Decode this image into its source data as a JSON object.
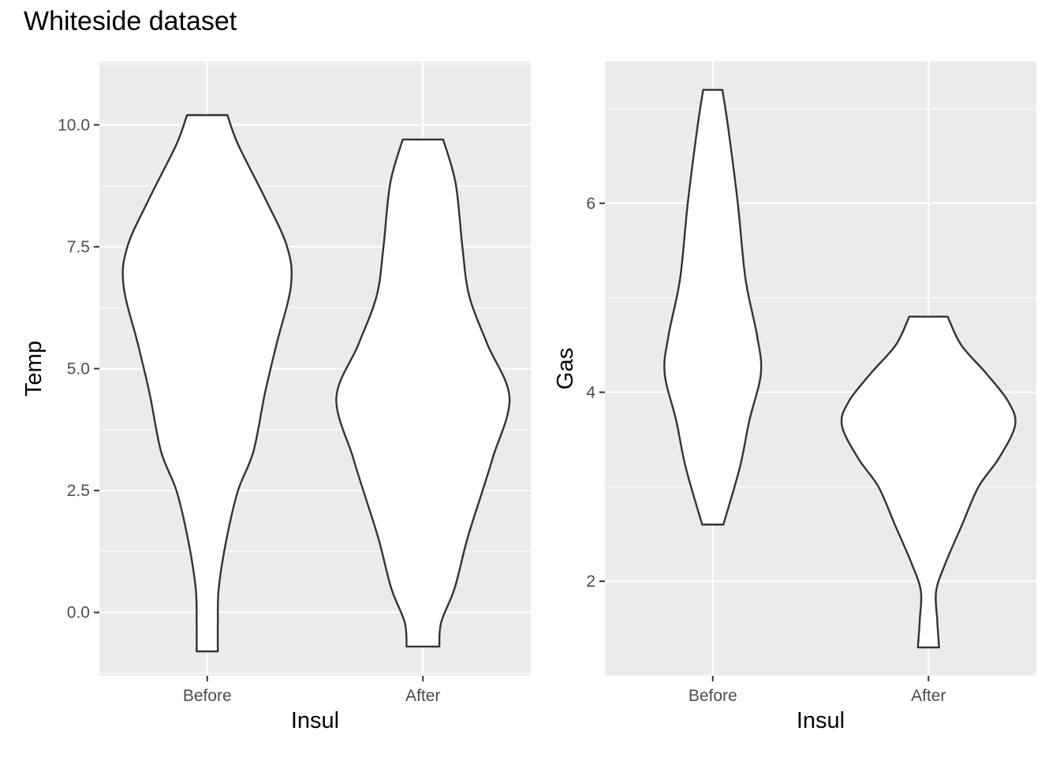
{
  "title": "Whiteside dataset",
  "colors": {
    "panel": "#EBEBEB",
    "grid": "#FFFFFF",
    "outline": "#333333",
    "fill": "#FFFFFF",
    "tick_text": "#4D4D4D"
  },
  "chart_data": [
    {
      "type": "violin",
      "xlabel": "Insul",
      "ylabel": "Temp",
      "categories": [
        "Before",
        "After"
      ],
      "ylim": [
        -1.3,
        11.3
      ],
      "yticks": [
        0.0,
        2.5,
        5.0,
        7.5,
        10.0
      ],
      "ytick_labels": [
        "0.0",
        "2.5",
        "5.0",
        "7.5",
        "10.0"
      ],
      "grid": true,
      "violins": [
        {
          "category": "Before",
          "min": -0.8,
          "max": 10.2,
          "profile": [
            [
              10.2,
              0.21
            ],
            [
              9.6,
              0.32
            ],
            [
              8.5,
              0.6
            ],
            [
              7.5,
              0.83
            ],
            [
              6.7,
              0.87
            ],
            [
              5.5,
              0.72
            ],
            [
              4.5,
              0.6
            ],
            [
              3.3,
              0.48
            ],
            [
              2.5,
              0.32
            ],
            [
              1.5,
              0.2
            ],
            [
              0.5,
              0.12
            ],
            [
              -0.2,
              0.11
            ],
            [
              -0.8,
              0.11
            ]
          ]
        },
        {
          "category": "After",
          "min": -0.7,
          "max": 9.7,
          "profile": [
            [
              9.7,
              0.21
            ],
            [
              8.8,
              0.34
            ],
            [
              7.5,
              0.41
            ],
            [
              6.5,
              0.48
            ],
            [
              5.5,
              0.67
            ],
            [
              4.4,
              0.9
            ],
            [
              3.2,
              0.73
            ],
            [
              2.5,
              0.62
            ],
            [
              1.5,
              0.46
            ],
            [
              0.5,
              0.33
            ],
            [
              -0.2,
              0.19
            ],
            [
              -0.7,
              0.17
            ]
          ]
        }
      ]
    },
    {
      "type": "violin",
      "xlabel": "Insul",
      "ylabel": "Gas",
      "categories": [
        "Before",
        "After"
      ],
      "ylim": [
        1.0,
        7.5
      ],
      "yticks": [
        2,
        4,
        6
      ],
      "ytick_labels": [
        "2",
        "4",
        "6"
      ],
      "grid": true,
      "violins": [
        {
          "category": "Before",
          "min": 2.6,
          "max": 7.2,
          "profile": [
            [
              7.2,
              0.1
            ],
            [
              6.8,
              0.16
            ],
            [
              6.0,
              0.26
            ],
            [
              5.2,
              0.34
            ],
            [
              4.6,
              0.46
            ],
            [
              4.2,
              0.5
            ],
            [
              3.7,
              0.38
            ],
            [
              3.2,
              0.28
            ],
            [
              2.6,
              0.11
            ]
          ]
        },
        {
          "category": "After",
          "min": 1.3,
          "max": 4.8,
          "profile": [
            [
              4.8,
              0.2
            ],
            [
              4.5,
              0.34
            ],
            [
              4.2,
              0.6
            ],
            [
              3.9,
              0.83
            ],
            [
              3.65,
              0.9
            ],
            [
              3.3,
              0.73
            ],
            [
              3.0,
              0.52
            ],
            [
              2.6,
              0.35
            ],
            [
              2.2,
              0.18
            ],
            [
              1.9,
              0.08
            ],
            [
              1.6,
              0.09
            ],
            [
              1.3,
              0.11
            ]
          ]
        }
      ]
    }
  ]
}
